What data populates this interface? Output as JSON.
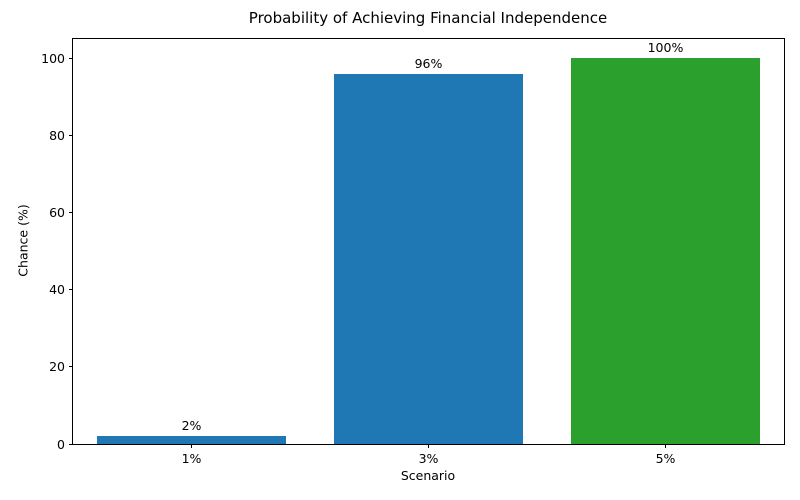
{
  "chart_data": {
    "type": "bar",
    "title": "Probability of Achieving Financial Independence",
    "xlabel": "Scenario",
    "ylabel": "Chance (%)",
    "categories": [
      "1%",
      "3%",
      "5%"
    ],
    "values": [
      2,
      96,
      100
    ],
    "bar_labels": [
      "2%",
      "96%",
      "100%"
    ],
    "bar_colors": [
      "#1f77b4",
      "#1f77b4",
      "#2ca02c"
    ],
    "ylim": [
      0,
      105
    ],
    "yticks": [
      0,
      20,
      40,
      60,
      80,
      100
    ],
    "bar_width_fraction": 0.8,
    "grid": false,
    "legend_position": "none",
    "axis_color": "#000000",
    "background_color": "#ffffff"
  }
}
